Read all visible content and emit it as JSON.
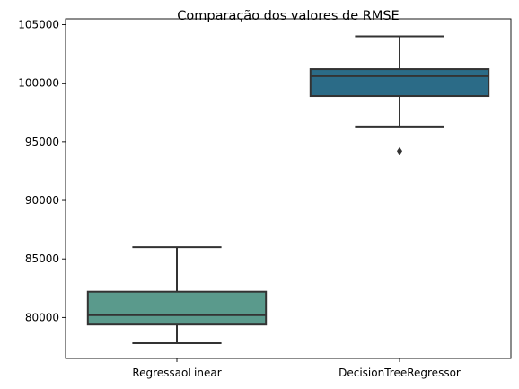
{
  "chart_data": {
    "type": "box",
    "title": "Comparação dos valores de RMSE",
    "xlabel": "",
    "ylabel": "",
    "ylim": [
      76500,
      105500
    ],
    "yticks": [
      {
        "value": 80000,
        "label": "80000"
      },
      {
        "value": 85000,
        "label": "85000"
      },
      {
        "value": 90000,
        "label": "90000"
      },
      {
        "value": 95000,
        "label": "95000"
      },
      {
        "value": 100000,
        "label": "100000"
      },
      {
        "value": 105000,
        "label": "105000"
      }
    ],
    "grid": false,
    "categories": [
      "RegressaoLinear",
      "DecisionTreeRegressor"
    ],
    "boxes": [
      {
        "category": "RegressaoLinear",
        "whisker_low": 77800,
        "q1": 79400,
        "median": 80200,
        "q3": 82200,
        "whisker_high": 86000,
        "outliers": [],
        "color": "#5a9a8c"
      },
      {
        "category": "DecisionTreeRegressor",
        "whisker_low": 96300,
        "q1": 98900,
        "median": 100600,
        "q3": 101200,
        "whisker_high": 104000,
        "outliers": [
          94200
        ],
        "color": "#2b6b87"
      }
    ],
    "line_color": "#333333"
  }
}
